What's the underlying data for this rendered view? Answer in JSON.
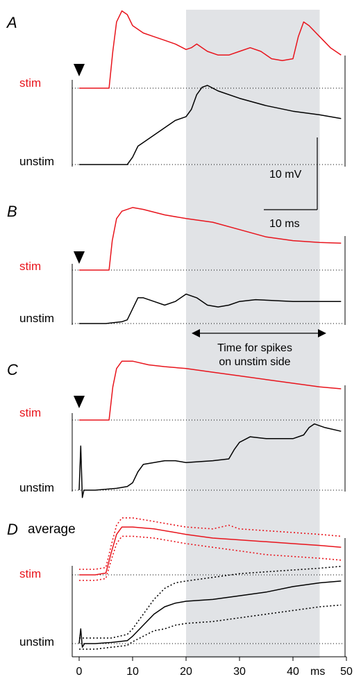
{
  "chart_data": {
    "type": "line",
    "x_unit": "ms",
    "xlim": [
      0,
      50
    ],
    "x_ticks": [
      0,
      10,
      20,
      30,
      40,
      50
    ],
    "x_tick_labels": [
      "0",
      "10",
      "20",
      "30",
      "40",
      "50"
    ],
    "x_unit_label": "ms",
    "shaded_window_ms": [
      20,
      45
    ],
    "stimulus_time_ms": 0,
    "scale_bar": {
      "voltage_label": "10 mV",
      "time_label": "10 ms",
      "voltage_mV": 10,
      "time_ms": 10
    },
    "annotation": {
      "line1": "Time for spikes",
      "line2": "on unstim side"
    },
    "colors": {
      "stim": "#e8141c",
      "unstim": "#000000",
      "shade": "#e1e3e6"
    },
    "panels": [
      {
        "label": "A",
        "title": "",
        "stim_label": "stim",
        "unstim_label": "unstim",
        "stim": {
          "x": [
            0,
            3,
            5.6,
            6.3,
            7,
            8,
            9,
            10,
            12,
            14,
            16,
            18,
            20,
            21,
            22,
            23,
            24,
            26,
            28,
            30,
            32,
            34,
            36,
            38,
            40,
            41,
            42,
            43,
            45,
            47,
            49
          ],
          "y": [
            0,
            0,
            0,
            10,
            18,
            21,
            20,
            17,
            15,
            14,
            13,
            12,
            10.5,
            11,
            12,
            11,
            10,
            9,
            9,
            10,
            11,
            10,
            8,
            7.5,
            8,
            14,
            18,
            17,
            14,
            11,
            9
          ]
        },
        "unstim": {
          "x": [
            0,
            3,
            6,
            8,
            9,
            10,
            11,
            12,
            14,
            16,
            18,
            20,
            21,
            22,
            23,
            24,
            26,
            30,
            35,
            40,
            45,
            49
          ],
          "y": [
            0,
            0,
            0,
            0,
            0,
            2,
            5,
            6,
            8,
            10,
            12,
            13,
            15,
            19,
            21,
            21.5,
            20,
            18,
            16,
            14.5,
            13.5,
            12.5
          ]
        }
      },
      {
        "label": "B",
        "title": "",
        "stim_label": "stim",
        "unstim_label": "unstim",
        "stim": {
          "x": [
            0,
            3,
            5.6,
            6.2,
            7,
            8,
            10,
            12,
            16,
            20,
            25,
            30,
            35,
            40,
            45,
            49
          ],
          "y": [
            0,
            0,
            0,
            8,
            14,
            16,
            17,
            16.5,
            15,
            14,
            13,
            11,
            9,
            8,
            7.5,
            7.3
          ]
        },
        "unstim": {
          "x": [
            0,
            5,
            8,
            9,
            10,
            11,
            12,
            14,
            16,
            18,
            20,
            22,
            24,
            26,
            28,
            30,
            33,
            40,
            45,
            49
          ],
          "y": [
            0,
            0,
            0.5,
            1,
            4,
            7,
            7,
            6,
            5,
            6,
            8,
            7,
            5,
            4.5,
            5,
            6,
            6.5,
            6,
            6,
            6
          ]
        }
      },
      {
        "label": "C",
        "title": "",
        "stim_label": "stim",
        "unstim_label": "unstim",
        "stim": {
          "x": [
            0,
            3,
            5.6,
            6.3,
            7,
            8,
            10,
            13,
            16,
            20,
            25,
            30,
            35,
            40,
            45,
            49
          ],
          "y": [
            0,
            0,
            0,
            9,
            14,
            16,
            16,
            15,
            14.5,
            14,
            13,
            12,
            11,
            10,
            9,
            8.5
          ]
        },
        "unstim": {
          "x": [
            0,
            0.3,
            0.6,
            0.9,
            1.2,
            3,
            7,
            9,
            10,
            11,
            12,
            14,
            16,
            18,
            20,
            25,
            28,
            29,
            30,
            32,
            35,
            38,
            40,
            42,
            43,
            44,
            46,
            49
          ],
          "y": [
            0,
            12,
            -2,
            0,
            0,
            0,
            0.5,
            1,
            2,
            5,
            7,
            7.5,
            8,
            8,
            7.5,
            8,
            8.5,
            11,
            13,
            14.5,
            14,
            14,
            14,
            15,
            17,
            18,
            17,
            16
          ]
        }
      },
      {
        "label": "D",
        "title": "average",
        "stim_label": "stim",
        "unstim_label": "unstim",
        "stim": {
          "x": [
            0,
            2,
            3,
            5,
            6,
            7,
            8,
            10,
            14,
            18,
            20,
            25,
            30,
            35,
            40,
            45,
            49
          ],
          "y": [
            0,
            0,
            0,
            0.5,
            6,
            11,
            13,
            13,
            12.5,
            11.5,
            11,
            10,
            9.5,
            9,
            8.5,
            8,
            7.5
          ]
        },
        "stim_upper": {
          "x": [
            0,
            3,
            5,
            6,
            7,
            8,
            10,
            14,
            18,
            20,
            25,
            28,
            30,
            35,
            40,
            45,
            49
          ],
          "y": [
            1.5,
            1.5,
            2,
            8,
            13.5,
            15.5,
            15.5,
            14.5,
            13.5,
            13,
            12.5,
            13.5,
            12.5,
            12,
            11.5,
            11,
            10.5
          ]
        },
        "stim_lower": {
          "x": [
            0,
            3,
            5,
            6,
            7,
            8,
            10,
            14,
            18,
            20,
            25,
            30,
            35,
            40,
            45,
            49
          ],
          "y": [
            -1.5,
            -1.5,
            -1,
            4,
            8.5,
            10.5,
            10.5,
            10,
            9,
            8.5,
            7.5,
            6.5,
            5.5,
            5,
            4.5,
            4
          ]
        },
        "unstim": {
          "x": [
            0,
            0.3,
            0.6,
            1,
            3,
            6,
            9,
            10,
            12,
            14,
            16,
            18,
            20,
            25,
            30,
            35,
            40,
            45,
            49
          ],
          "y": [
            0,
            4,
            -1,
            0,
            0,
            0.3,
            0.8,
            2,
            5,
            8,
            10,
            11,
            11.5,
            12,
            13,
            14,
            15.5,
            16.5,
            17
          ]
        },
        "unstim_upper": {
          "x": [
            0,
            3,
            6,
            9,
            10,
            12,
            14,
            16,
            18,
            20,
            25,
            30,
            35,
            40,
            45,
            49
          ],
          "y": [
            1.5,
            1.5,
            1.5,
            2.5,
            4,
            8,
            12,
            15,
            16.5,
            17,
            18,
            19,
            19.5,
            20,
            20.5,
            21
          ]
        },
        "unstim_lower": {
          "x": [
            0,
            3,
            6,
            9,
            10,
            12,
            14,
            16,
            18,
            20,
            25,
            30,
            35,
            40,
            45,
            49
          ],
          "y": [
            -1.5,
            -1.5,
            -1,
            -0.5,
            0.5,
            2,
            3.5,
            4,
            5,
            5.5,
            6,
            7,
            8,
            9,
            10,
            10.5
          ]
        }
      }
    ]
  }
}
